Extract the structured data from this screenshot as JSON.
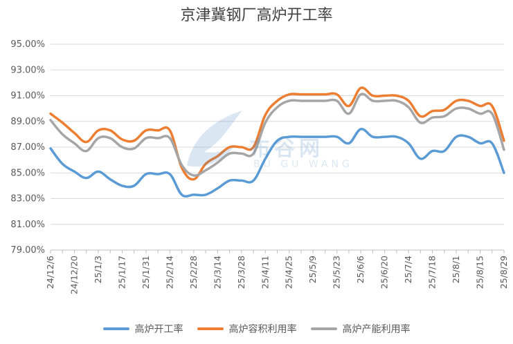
{
  "chart_data": {
    "type": "line",
    "title": "京津冀钢厂高炉开工率",
    "xlabel": "",
    "ylabel": "",
    "ylim": [
      79,
      95
    ],
    "yticks": [
      "79.00%",
      "81.00%",
      "83.00%",
      "85.00%",
      "87.00%",
      "89.00%",
      "91.00%",
      "93.00%",
      "95.00%"
    ],
    "categories": [
      "24/12/6",
      "24/12/13",
      "24/12/20",
      "24/12/27",
      "25/1/3",
      "25/1/10",
      "25/1/17",
      "25/1/24",
      "25/1/31",
      "25/2/7",
      "25/2/14",
      "25/2/21",
      "25/2/28",
      "25/3/7",
      "25/3/14",
      "25/3/21",
      "25/3/28",
      "25/4/4",
      "25/4/11",
      "25/4/18",
      "25/4/25",
      "25/5/2",
      "25/5/9",
      "25/5/16",
      "25/5/23",
      "25/5/30",
      "25/6/6",
      "25/6/13",
      "25/6/20",
      "25/6/27",
      "25/7/4",
      "25/7/11",
      "25/7/18",
      "25/7/25",
      "25/8/1",
      "25/8/8",
      "25/8/15",
      "25/8/22",
      "25/8/29"
    ],
    "x_tick_labels": [
      "24/12/6",
      "24/12/20",
      "25/1/3",
      "25/1/17",
      "25/1/31",
      "25/2/14",
      "25/2/28",
      "25/3/14",
      "25/3/28",
      "25/4/11",
      "25/4/25",
      "25/5/9",
      "25/5/23",
      "25/6/6",
      "25/6/20",
      "25/7/4",
      "25/7/18",
      "25/8/1",
      "25/8/15",
      "25/8/29"
    ],
    "series": [
      {
        "name": "高炉开工率",
        "color": "#5b9bd5",
        "values": [
          86.9,
          85.7,
          85.1,
          84.6,
          85.1,
          84.5,
          84.0,
          84.0,
          84.9,
          84.9,
          84.9,
          83.3,
          83.3,
          83.3,
          83.8,
          84.4,
          84.4,
          84.4,
          86.1,
          87.5,
          87.8,
          87.8,
          87.8,
          87.8,
          87.8,
          87.3,
          88.4,
          87.8,
          87.8,
          87.8,
          87.3,
          86.1,
          86.7,
          86.7,
          87.8,
          87.8,
          87.3,
          87.3,
          85.0
        ]
      },
      {
        "name": "高炉容积利用率",
        "color": "#ed7d31",
        "values": [
          89.6,
          88.9,
          88.1,
          87.4,
          88.3,
          88.3,
          87.6,
          87.5,
          88.3,
          88.3,
          88.3,
          85.4,
          84.5,
          85.7,
          86.3,
          87.0,
          87.0,
          87.0,
          89.5,
          90.6,
          91.1,
          91.1,
          91.1,
          91.1,
          91.1,
          90.2,
          91.6,
          91.0,
          91.0,
          91.0,
          90.6,
          89.4,
          89.8,
          89.9,
          90.6,
          90.6,
          90.2,
          90.2,
          87.5
        ]
      },
      {
        "name": "高炉产能利用率",
        "color": "#a5a5a5",
        "values": [
          89.1,
          88.0,
          87.3,
          86.7,
          87.7,
          87.7,
          87.0,
          86.9,
          87.7,
          87.7,
          87.7,
          85.6,
          84.8,
          85.2,
          85.8,
          86.5,
          86.5,
          86.5,
          88.9,
          90.1,
          90.6,
          90.6,
          90.6,
          90.6,
          90.6,
          89.6,
          91.1,
          90.6,
          90.6,
          90.6,
          90.1,
          88.9,
          89.3,
          89.4,
          90.0,
          90.0,
          89.6,
          89.6,
          86.8
        ]
      }
    ],
    "grid": true,
    "legend_position": "bottom"
  },
  "watermark": {
    "text": "布谷网",
    "subtext": "BU GU WANG"
  }
}
